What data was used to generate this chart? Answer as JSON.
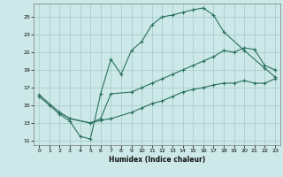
{
  "xlabel": "Humidex (Indice chaleur)",
  "bg_color": "#cce8e8",
  "grid_color": "#aacece",
  "line_color": "#2a7060",
  "xlim": [
    -0.5,
    23.5
  ],
  "ylim": [
    10.5,
    26.5
  ],
  "xticks": [
    0,
    1,
    2,
    3,
    4,
    5,
    6,
    7,
    8,
    9,
    10,
    11,
    12,
    13,
    14,
    15,
    16,
    17,
    18,
    19,
    20,
    21,
    22,
    23
  ],
  "yticks": [
    11,
    13,
    15,
    17,
    19,
    21,
    23,
    25
  ],
  "line1_x": [
    0,
    1,
    2,
    3,
    4,
    5,
    6,
    7,
    8,
    9,
    10,
    11,
    12,
    13,
    14,
    15,
    16,
    17,
    18,
    20,
    22,
    23
  ],
  "line1_y": [
    16,
    15,
    14,
    13.2,
    11.5,
    11.2,
    16.3,
    20.2,
    18.5,
    21.2,
    22.2,
    24.1,
    25.0,
    25.2,
    25.5,
    25.8,
    26.0,
    25.2,
    23.3,
    21.2,
    19.2,
    18.2
  ],
  "line2_x": [
    0,
    2,
    3,
    5,
    6,
    7,
    9,
    10,
    11,
    12,
    13,
    14,
    15,
    16,
    17,
    18,
    19,
    20,
    21,
    22,
    23
  ],
  "line2_y": [
    16.2,
    14.2,
    13.5,
    13.0,
    13.5,
    16.3,
    16.5,
    17.0,
    17.5,
    18.0,
    18.5,
    19.0,
    19.5,
    20.0,
    20.5,
    21.2,
    21.0,
    21.5,
    21.3,
    19.5,
    19.0
  ],
  "line3_x": [
    2,
    3,
    5,
    6,
    7,
    9,
    10,
    11,
    12,
    13,
    14,
    15,
    16,
    17,
    18,
    19,
    20,
    21,
    22,
    23
  ],
  "line3_y": [
    14.2,
    13.5,
    13.0,
    13.3,
    13.5,
    14.2,
    14.7,
    15.2,
    15.5,
    16.0,
    16.5,
    16.8,
    17.0,
    17.3,
    17.5,
    17.5,
    17.8,
    17.5,
    17.5,
    18.0
  ]
}
